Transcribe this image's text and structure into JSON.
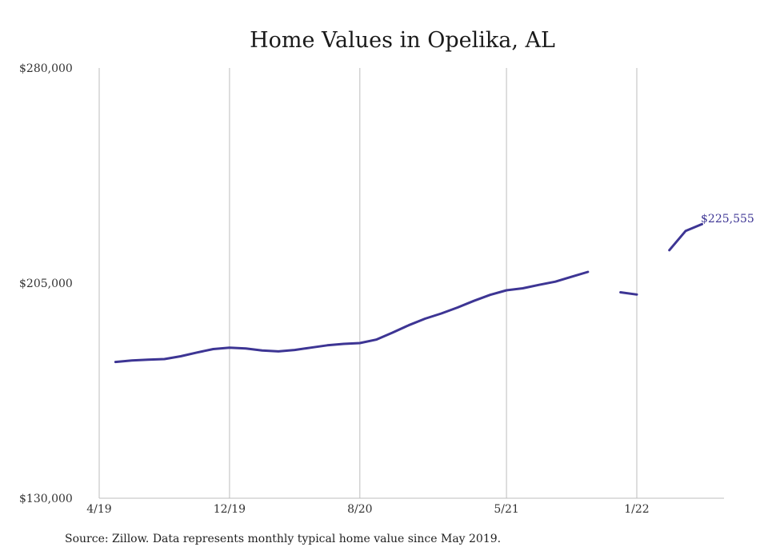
{
  "chart_data": {
    "type": "line",
    "title": "Home Values in Opelika, AL",
    "xlabel": "",
    "ylabel": "",
    "ylim": [
      130000,
      280000
    ],
    "yticks": [
      "$280,000",
      "$205,000",
      "$130,000"
    ],
    "yticks_values": [
      280000,
      205000,
      130000
    ],
    "xticks": [
      {
        "label": "4/19",
        "date": "2019-04"
      },
      {
        "label": "12/19",
        "date": "2019-12"
      },
      {
        "label": "8/20",
        "date": "2020-08"
      },
      {
        "label": "5/21",
        "date": "2021-05"
      },
      {
        "label": "1/22",
        "date": "2022-01"
      }
    ],
    "grid": "vertical",
    "series": [
      {
        "color": "#3d3594",
        "points": [
          {
            "x": "2019-05",
            "y": 177500
          },
          {
            "x": "2019-06",
            "y": 178000
          },
          {
            "x": "2019-07",
            "y": 178300
          },
          {
            "x": "2019-08",
            "y": 178500
          },
          {
            "x": "2019-09",
            "y": 179500
          },
          {
            "x": "2019-10",
            "y": 180800
          },
          {
            "x": "2019-11",
            "y": 182000
          },
          {
            "x": "2019-12",
            "y": 182500
          },
          {
            "x": "2020-01",
            "y": 182200
          },
          {
            "x": "2020-02",
            "y": 181500
          },
          {
            "x": "2020-03",
            "y": 181200
          },
          {
            "x": "2020-04",
            "y": 181700
          },
          {
            "x": "2020-05",
            "y": 182500
          },
          {
            "x": "2020-06",
            "y": 183300
          },
          {
            "x": "2020-07",
            "y": 183800
          },
          {
            "x": "2020-08",
            "y": 184100
          },
          {
            "x": "2020-09",
            "y": 185300
          },
          {
            "x": "2020-10",
            "y": 187700
          },
          {
            "x": "2020-11",
            "y": 190300
          },
          {
            "x": "2020-12",
            "y": 192600
          },
          {
            "x": "2021-01",
            "y": 194400
          },
          {
            "x": "2021-02",
            "y": 196500
          },
          {
            "x": "2021-03",
            "y": 198800
          },
          {
            "x": "2021-04",
            "y": 200900
          },
          {
            "x": "2021-05",
            "y": 202500
          },
          {
            "x": "2021-06",
            "y": 203200
          },
          {
            "x": "2021-07",
            "y": 204400
          },
          {
            "x": "2021-08",
            "y": 205500
          },
          {
            "x": "2021-09",
            "y": 207200
          },
          {
            "x": "2021-10",
            "y": 208900
          },
          {
            "x": "2021-11",
            "y": null
          },
          {
            "x": "2021-12",
            "y": 201800
          },
          {
            "x": "2022-01",
            "y": 201000
          },
          {
            "x": "2022-02",
            "y": null
          },
          {
            "x": "2022-03",
            "y": 216500
          },
          {
            "x": "2022-04",
            "y": 223200
          },
          {
            "x": "2022-05",
            "y": 225555
          }
        ]
      }
    ],
    "end_label": "$225,555"
  },
  "source": "Source: Zillow. Data represents monthly typical home value since May 2019."
}
